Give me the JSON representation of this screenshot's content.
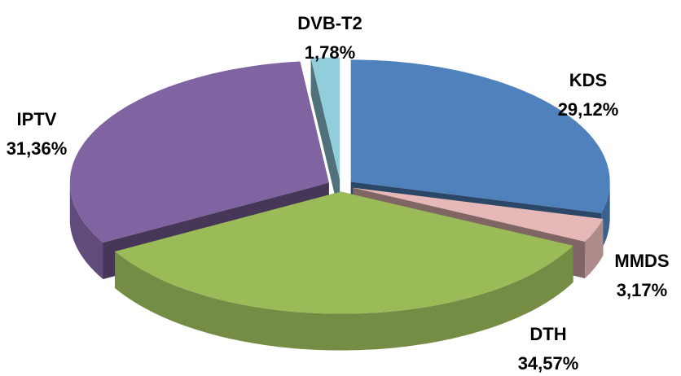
{
  "chart_data": {
    "type": "pie3d",
    "categories": [
      "KDS",
      "MMDS",
      "DTH",
      "IPTV",
      "DVB-T2"
    ],
    "values": [
      29.12,
      3.17,
      34.57,
      31.36,
      1.78
    ],
    "value_labels": [
      "29,12%",
      "3,17%",
      "34,57%",
      "31,36%",
      "1,78%"
    ],
    "colors": [
      "#4f81bd",
      "#e6b9b8",
      "#9bbb59",
      "#8064a2",
      "#92cddc"
    ]
  }
}
